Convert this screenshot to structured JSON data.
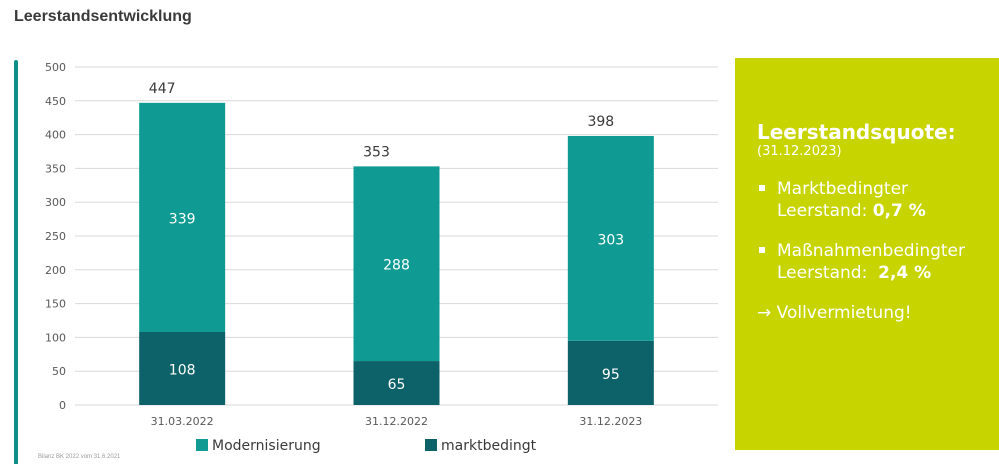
{
  "page_title": "Leerstandsentwicklung",
  "footnote": "Bilanz BK 2022 vom 31.6.2021",
  "colors": {
    "modernisierung": "#0f9b94",
    "marktbedingt": "#0d6169",
    "grid": "#d9d9d9",
    "info_bg": "#c8d400",
    "accent": "#0f8f8a"
  },
  "chart_data": {
    "type": "bar",
    "stacked": true,
    "categories": [
      "31.03.2022",
      "31.12.2022",
      "31.12.2023"
    ],
    "series": [
      {
        "name": "marktbedingt",
        "values": [
          108,
          65,
          95
        ]
      },
      {
        "name": "Modernisierung",
        "values": [
          339,
          288,
          303
        ]
      }
    ],
    "totals": [
      447,
      353,
      398
    ],
    "ylim": [
      0,
      500
    ],
    "yticks": [
      0,
      50,
      100,
      150,
      200,
      250,
      300,
      350,
      400,
      450,
      500
    ],
    "grid": true,
    "legend": {
      "placement": "bottom",
      "order": [
        "Modernisierung",
        "marktbedingt"
      ]
    },
    "title": "",
    "xlabel": "",
    "ylabel": ""
  },
  "info_box": {
    "title": "Leerstandsquote:",
    "date": "(31.12.2023)",
    "items": [
      {
        "line1": "Marktbedingter",
        "line2_prefix": "Leerstand: ",
        "value": "0,7 %"
      },
      {
        "line1": "Maßnahmenbedingter",
        "line2_prefix": "Leerstand:  ",
        "value": "2,4 %"
      }
    ],
    "conclusion": "→ Vollvermietung!"
  }
}
